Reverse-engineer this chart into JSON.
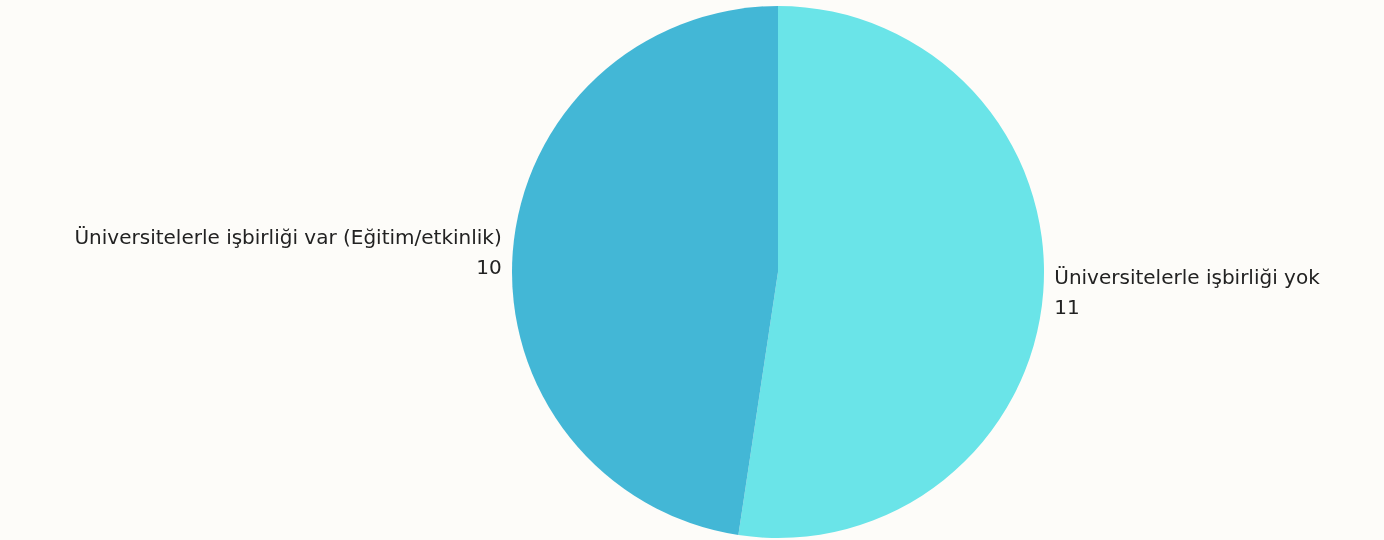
{
  "chart_data": {
    "type": "pie",
    "categories": [
      "Üniversitelerle işbirliği yok",
      "Üniversitelerle işbirliği var (Eğitim/etkinlik)"
    ],
    "values": [
      11,
      10
    ],
    "colors": [
      "#6ae4e8",
      "#43b7d6"
    ],
    "data_labels": true,
    "legend": false
  }
}
